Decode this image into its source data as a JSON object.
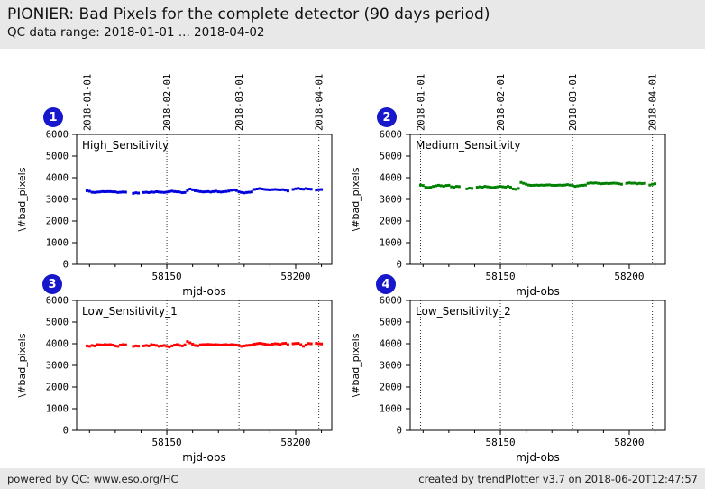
{
  "header": {
    "title": "PIONIER: Bad Pixels for the complete detector (90 days period)",
    "subtitle": "QC data range: 2018-01-01 ... 2018-04-02"
  },
  "footer": {
    "left": "powered by QC: www.eso.org/HC",
    "right": "created by trendPlotter v3.7 on 2018-06-20T12:47:57"
  },
  "colors": {
    "panel_bg": "#e8e8e8",
    "badge_blue": "#1717cc",
    "series_blue": "#0000dd",
    "series_green": "#008000",
    "series_red": "#ff0000"
  },
  "chart_data": [
    {
      "panel": "top-left",
      "badge": "1",
      "type": "scatter",
      "series_label": "High_Sensitivity",
      "color": "#0000dd",
      "marker": "square",
      "xlabel": "mjd-obs",
      "ylabel": "\\#bad_pixels",
      "xlim": [
        58115,
        58214
      ],
      "ylim": [
        0,
        6000
      ],
      "yticks": [
        0,
        1000,
        2000,
        3000,
        4000,
        5000,
        6000
      ],
      "xticks": [
        58150,
        58200
      ],
      "xminor_step": 10,
      "grid": "vertical-dotted-date-lines",
      "date_labels_top": true,
      "date_gridlines": [
        {
          "mjd": 58119,
          "label": "2018-01-01"
        },
        {
          "mjd": 58150,
          "label": "2018-02-01"
        },
        {
          "mjd": 58178,
          "label": "2018-03-01"
        },
        {
          "mjd": 58209,
          "label": "2018-04-01"
        }
      ],
      "points": [
        [
          58119,
          3400
        ],
        [
          58120,
          3375
        ],
        [
          58121,
          3330
        ],
        [
          58122,
          3320
        ],
        [
          58123,
          3335
        ],
        [
          58124,
          3345
        ],
        [
          58125,
          3360
        ],
        [
          58126,
          3355
        ],
        [
          58127,
          3360
        ],
        [
          58128,
          3360
        ],
        [
          58129,
          3350
        ],
        [
          58130,
          3345
        ],
        [
          58131,
          3320
        ],
        [
          58132,
          3330
        ],
        [
          58133,
          3340
        ],
        [
          58134,
          3335
        ],
        [
          58137,
          3280
        ],
        [
          58138,
          3305
        ],
        [
          58139,
          3290
        ],
        [
          58141,
          3320
        ],
        [
          58142,
          3330
        ],
        [
          58143,
          3315
        ],
        [
          58144,
          3340
        ],
        [
          58145,
          3330
        ],
        [
          58146,
          3355
        ],
        [
          58147,
          3340
        ],
        [
          58148,
          3330
        ],
        [
          58149,
          3320
        ],
        [
          58150,
          3340
        ],
        [
          58151,
          3360
        ],
        [
          58152,
          3380
        ],
        [
          58153,
          3360
        ],
        [
          58154,
          3350
        ],
        [
          58155,
          3335
        ],
        [
          58156,
          3310
        ],
        [
          58157,
          3320
        ],
        [
          58158,
          3410
        ],
        [
          58159,
          3480
        ],
        [
          58160,
          3445
        ],
        [
          58161,
          3400
        ],
        [
          58162,
          3380
        ],
        [
          58163,
          3360
        ],
        [
          58164,
          3345
        ],
        [
          58165,
          3350
        ],
        [
          58166,
          3360
        ],
        [
          58167,
          3340
        ],
        [
          58168,
          3360
        ],
        [
          58169,
          3380
        ],
        [
          58170,
          3350
        ],
        [
          58171,
          3340
        ],
        [
          58172,
          3350
        ],
        [
          58173,
          3365
        ],
        [
          58174,
          3385
        ],
        [
          58175,
          3420
        ],
        [
          58176,
          3440
        ],
        [
          58177,
          3410
        ],
        [
          58178,
          3350
        ],
        [
          58179,
          3320
        ],
        [
          58180,
          3300
        ],
        [
          58181,
          3320
        ],
        [
          58182,
          3330
        ],
        [
          58183,
          3345
        ],
        [
          58184,
          3460
        ],
        [
          58185,
          3480
        ],
        [
          58186,
          3500
        ],
        [
          58187,
          3480
        ],
        [
          58188,
          3460
        ],
        [
          58189,
          3450
        ],
        [
          58190,
          3440
        ],
        [
          58191,
          3450
        ],
        [
          58192,
          3460
        ],
        [
          58193,
          3450
        ],
        [
          58194,
          3440
        ],
        [
          58195,
          3450
        ],
        [
          58196,
          3430
        ],
        [
          58197,
          3390
        ],
        [
          58199,
          3460
        ],
        [
          58200,
          3490
        ],
        [
          58201,
          3510
        ],
        [
          58202,
          3480
        ],
        [
          58203,
          3470
        ],
        [
          58204,
          3500
        ],
        [
          58205,
          3480
        ],
        [
          58206,
          3470
        ],
        [
          58208,
          3430
        ],
        [
          58209,
          3450
        ],
        [
          58210,
          3455
        ]
      ]
    },
    {
      "panel": "top-right",
      "badge": "2",
      "type": "scatter",
      "series_label": "Medium_Sensitivity",
      "color": "#008000",
      "marker": "square",
      "xlabel": "mjd-obs",
      "ylabel": "\\#bad_pixels",
      "xlim": [
        58115,
        58214
      ],
      "ylim": [
        0,
        6000
      ],
      "yticks": [
        0,
        1000,
        2000,
        3000,
        4000,
        5000,
        6000
      ],
      "xticks": [
        58150,
        58200
      ],
      "xminor_step": 10,
      "grid": "vertical-dotted-date-lines",
      "date_labels_top": true,
      "date_gridlines": [
        {
          "mjd": 58119,
          "label": "2018-01-01"
        },
        {
          "mjd": 58150,
          "label": "2018-02-01"
        },
        {
          "mjd": 58178,
          "label": "2018-03-01"
        },
        {
          "mjd": 58209,
          "label": "2018-04-01"
        }
      ],
      "points": [
        [
          58119,
          3660
        ],
        [
          58120,
          3640
        ],
        [
          58121,
          3560
        ],
        [
          58122,
          3545
        ],
        [
          58123,
          3560
        ],
        [
          58124,
          3600
        ],
        [
          58125,
          3625
        ],
        [
          58126,
          3650
        ],
        [
          58127,
          3630
        ],
        [
          58128,
          3605
        ],
        [
          58129,
          3640
        ],
        [
          58130,
          3650
        ],
        [
          58131,
          3580
        ],
        [
          58132,
          3560
        ],
        [
          58133,
          3600
        ],
        [
          58134,
          3590
        ],
        [
          58137,
          3485
        ],
        [
          58138,
          3520
        ],
        [
          58139,
          3505
        ],
        [
          58141,
          3560
        ],
        [
          58142,
          3580
        ],
        [
          58143,
          3560
        ],
        [
          58144,
          3600
        ],
        [
          58145,
          3580
        ],
        [
          58146,
          3560
        ],
        [
          58147,
          3545
        ],
        [
          58148,
          3560
        ],
        [
          58149,
          3580
        ],
        [
          58150,
          3600
        ],
        [
          58151,
          3580
        ],
        [
          58152,
          3565
        ],
        [
          58153,
          3600
        ],
        [
          58154,
          3560
        ],
        [
          58155,
          3480
        ],
        [
          58156,
          3465
        ],
        [
          58157,
          3505
        ],
        [
          58158,
          3780
        ],
        [
          58159,
          3740
        ],
        [
          58160,
          3700
        ],
        [
          58161,
          3660
        ],
        [
          58162,
          3645
        ],
        [
          58163,
          3650
        ],
        [
          58164,
          3660
        ],
        [
          58165,
          3650
        ],
        [
          58166,
          3660
        ],
        [
          58167,
          3650
        ],
        [
          58168,
          3665
        ],
        [
          58169,
          3670
        ],
        [
          58170,
          3650
        ],
        [
          58171,
          3645
        ],
        [
          58172,
          3650
        ],
        [
          58173,
          3660
        ],
        [
          58174,
          3650
        ],
        [
          58175,
          3660
        ],
        [
          58176,
          3680
        ],
        [
          58177,
          3660
        ],
        [
          58178,
          3640
        ],
        [
          58179,
          3600
        ],
        [
          58180,
          3620
        ],
        [
          58181,
          3640
        ],
        [
          58182,
          3650
        ],
        [
          58183,
          3660
        ],
        [
          58184,
          3740
        ],
        [
          58185,
          3760
        ],
        [
          58186,
          3750
        ],
        [
          58187,
          3760
        ],
        [
          58188,
          3740
        ],
        [
          58189,
          3720
        ],
        [
          58190,
          3730
        ],
        [
          58191,
          3740
        ],
        [
          58192,
          3730
        ],
        [
          58193,
          3740
        ],
        [
          58194,
          3750
        ],
        [
          58195,
          3740
        ],
        [
          58196,
          3720
        ],
        [
          58197,
          3700
        ],
        [
          58199,
          3740
        ],
        [
          58200,
          3760
        ],
        [
          58201,
          3745
        ],
        [
          58202,
          3750
        ],
        [
          58203,
          3720
        ],
        [
          58204,
          3740
        ],
        [
          58205,
          3730
        ],
        [
          58206,
          3740
        ],
        [
          58208,
          3660
        ],
        [
          58209,
          3700
        ],
        [
          58210,
          3720
        ]
      ]
    },
    {
      "panel": "bottom-left",
      "badge": "3",
      "type": "scatter",
      "series_label": "Low_Sensitivity_1",
      "color": "#ff0000",
      "marker": "square",
      "xlabel": "mjd-obs",
      "ylabel": "\\#bad_pixels",
      "xlim": [
        58115,
        58214
      ],
      "ylim": [
        0,
        6000
      ],
      "yticks": [
        0,
        1000,
        2000,
        3000,
        4000,
        5000,
        6000
      ],
      "xticks": [
        58150,
        58200
      ],
      "xminor_step": 10,
      "grid": "vertical-dotted-date-lines",
      "date_labels_top": false,
      "date_gridlines": [
        {
          "mjd": 58119,
          "label": "2018-01-01"
        },
        {
          "mjd": 58150,
          "label": "2018-02-01"
        },
        {
          "mjd": 58178,
          "label": "2018-03-01"
        },
        {
          "mjd": 58209,
          "label": "2018-04-01"
        }
      ],
      "points": [
        [
          58119,
          3900
        ],
        [
          58120,
          3880
        ],
        [
          58121,
          3920
        ],
        [
          58122,
          3900
        ],
        [
          58123,
          3960
        ],
        [
          58124,
          3950
        ],
        [
          58125,
          3940
        ],
        [
          58126,
          3960
        ],
        [
          58127,
          3950
        ],
        [
          58128,
          3960
        ],
        [
          58129,
          3940
        ],
        [
          58130,
          3900
        ],
        [
          58131,
          3880
        ],
        [
          58132,
          3940
        ],
        [
          58133,
          3960
        ],
        [
          58134,
          3950
        ],
        [
          58137,
          3880
        ],
        [
          58138,
          3900
        ],
        [
          58139,
          3890
        ],
        [
          58141,
          3900
        ],
        [
          58142,
          3920
        ],
        [
          58143,
          3900
        ],
        [
          58144,
          3960
        ],
        [
          58145,
          3940
        ],
        [
          58146,
          3920
        ],
        [
          58147,
          3880
        ],
        [
          58148,
          3900
        ],
        [
          58149,
          3920
        ],
        [
          58150,
          3880
        ],
        [
          58151,
          3850
        ],
        [
          58152,
          3900
        ],
        [
          58153,
          3940
        ],
        [
          58154,
          3960
        ],
        [
          58155,
          3920
        ],
        [
          58156,
          3900
        ],
        [
          58157,
          3950
        ],
        [
          58158,
          4100
        ],
        [
          58159,
          4040
        ],
        [
          58160,
          3980
        ],
        [
          58161,
          3920
        ],
        [
          58162,
          3900
        ],
        [
          58163,
          3950
        ],
        [
          58164,
          3960
        ],
        [
          58165,
          3960
        ],
        [
          58166,
          3970
        ],
        [
          58167,
          3960
        ],
        [
          58168,
          3950
        ],
        [
          58169,
          3960
        ],
        [
          58170,
          3950
        ],
        [
          58171,
          3940
        ],
        [
          58172,
          3950
        ],
        [
          58173,
          3960
        ],
        [
          58174,
          3940
        ],
        [
          58175,
          3960
        ],
        [
          58176,
          3950
        ],
        [
          58177,
          3940
        ],
        [
          58178,
          3920
        ],
        [
          58179,
          3880
        ],
        [
          58180,
          3900
        ],
        [
          58181,
          3920
        ],
        [
          58182,
          3930
        ],
        [
          58183,
          3940
        ],
        [
          58184,
          3980
        ],
        [
          58185,
          4000
        ],
        [
          58186,
          4020
        ],
        [
          58187,
          4000
        ],
        [
          58188,
          3980
        ],
        [
          58189,
          3960
        ],
        [
          58190,
          3940
        ],
        [
          58191,
          3980
        ],
        [
          58192,
          4000
        ],
        [
          58193,
          3990
        ],
        [
          58194,
          3970
        ],
        [
          58195,
          4010
        ],
        [
          58196,
          4020
        ],
        [
          58197,
          3960
        ],
        [
          58199,
          4000
        ],
        [
          58200,
          4010
        ],
        [
          58201,
          4020
        ],
        [
          58202,
          3960
        ],
        [
          58203,
          3880
        ],
        [
          58204,
          3940
        ],
        [
          58205,
          4010
        ],
        [
          58206,
          4000
        ],
        [
          58208,
          4020
        ],
        [
          58209,
          4000
        ],
        [
          58210,
          3990
        ]
      ]
    },
    {
      "panel": "bottom-right",
      "badge": "4",
      "type": "scatter",
      "series_label": "Low_Sensitivity_2",
      "color": "#000000",
      "marker": "square",
      "xlabel": "mjd-obs",
      "ylabel": "\\#bad_pixels",
      "xlim": [
        58115,
        58214
      ],
      "ylim": [
        0,
        6000
      ],
      "yticks": [
        0,
        1000,
        2000,
        3000,
        4000,
        5000,
        6000
      ],
      "xticks": [
        58150,
        58200
      ],
      "xminor_step": 10,
      "grid": "vertical-dotted-date-lines",
      "date_labels_top": false,
      "date_gridlines": [
        {
          "mjd": 58119,
          "label": "2018-01-01"
        },
        {
          "mjd": 58150,
          "label": "2018-02-01"
        },
        {
          "mjd": 58178,
          "label": "2018-03-01"
        },
        {
          "mjd": 58209,
          "label": "2018-04-01"
        }
      ],
      "points": []
    }
  ]
}
